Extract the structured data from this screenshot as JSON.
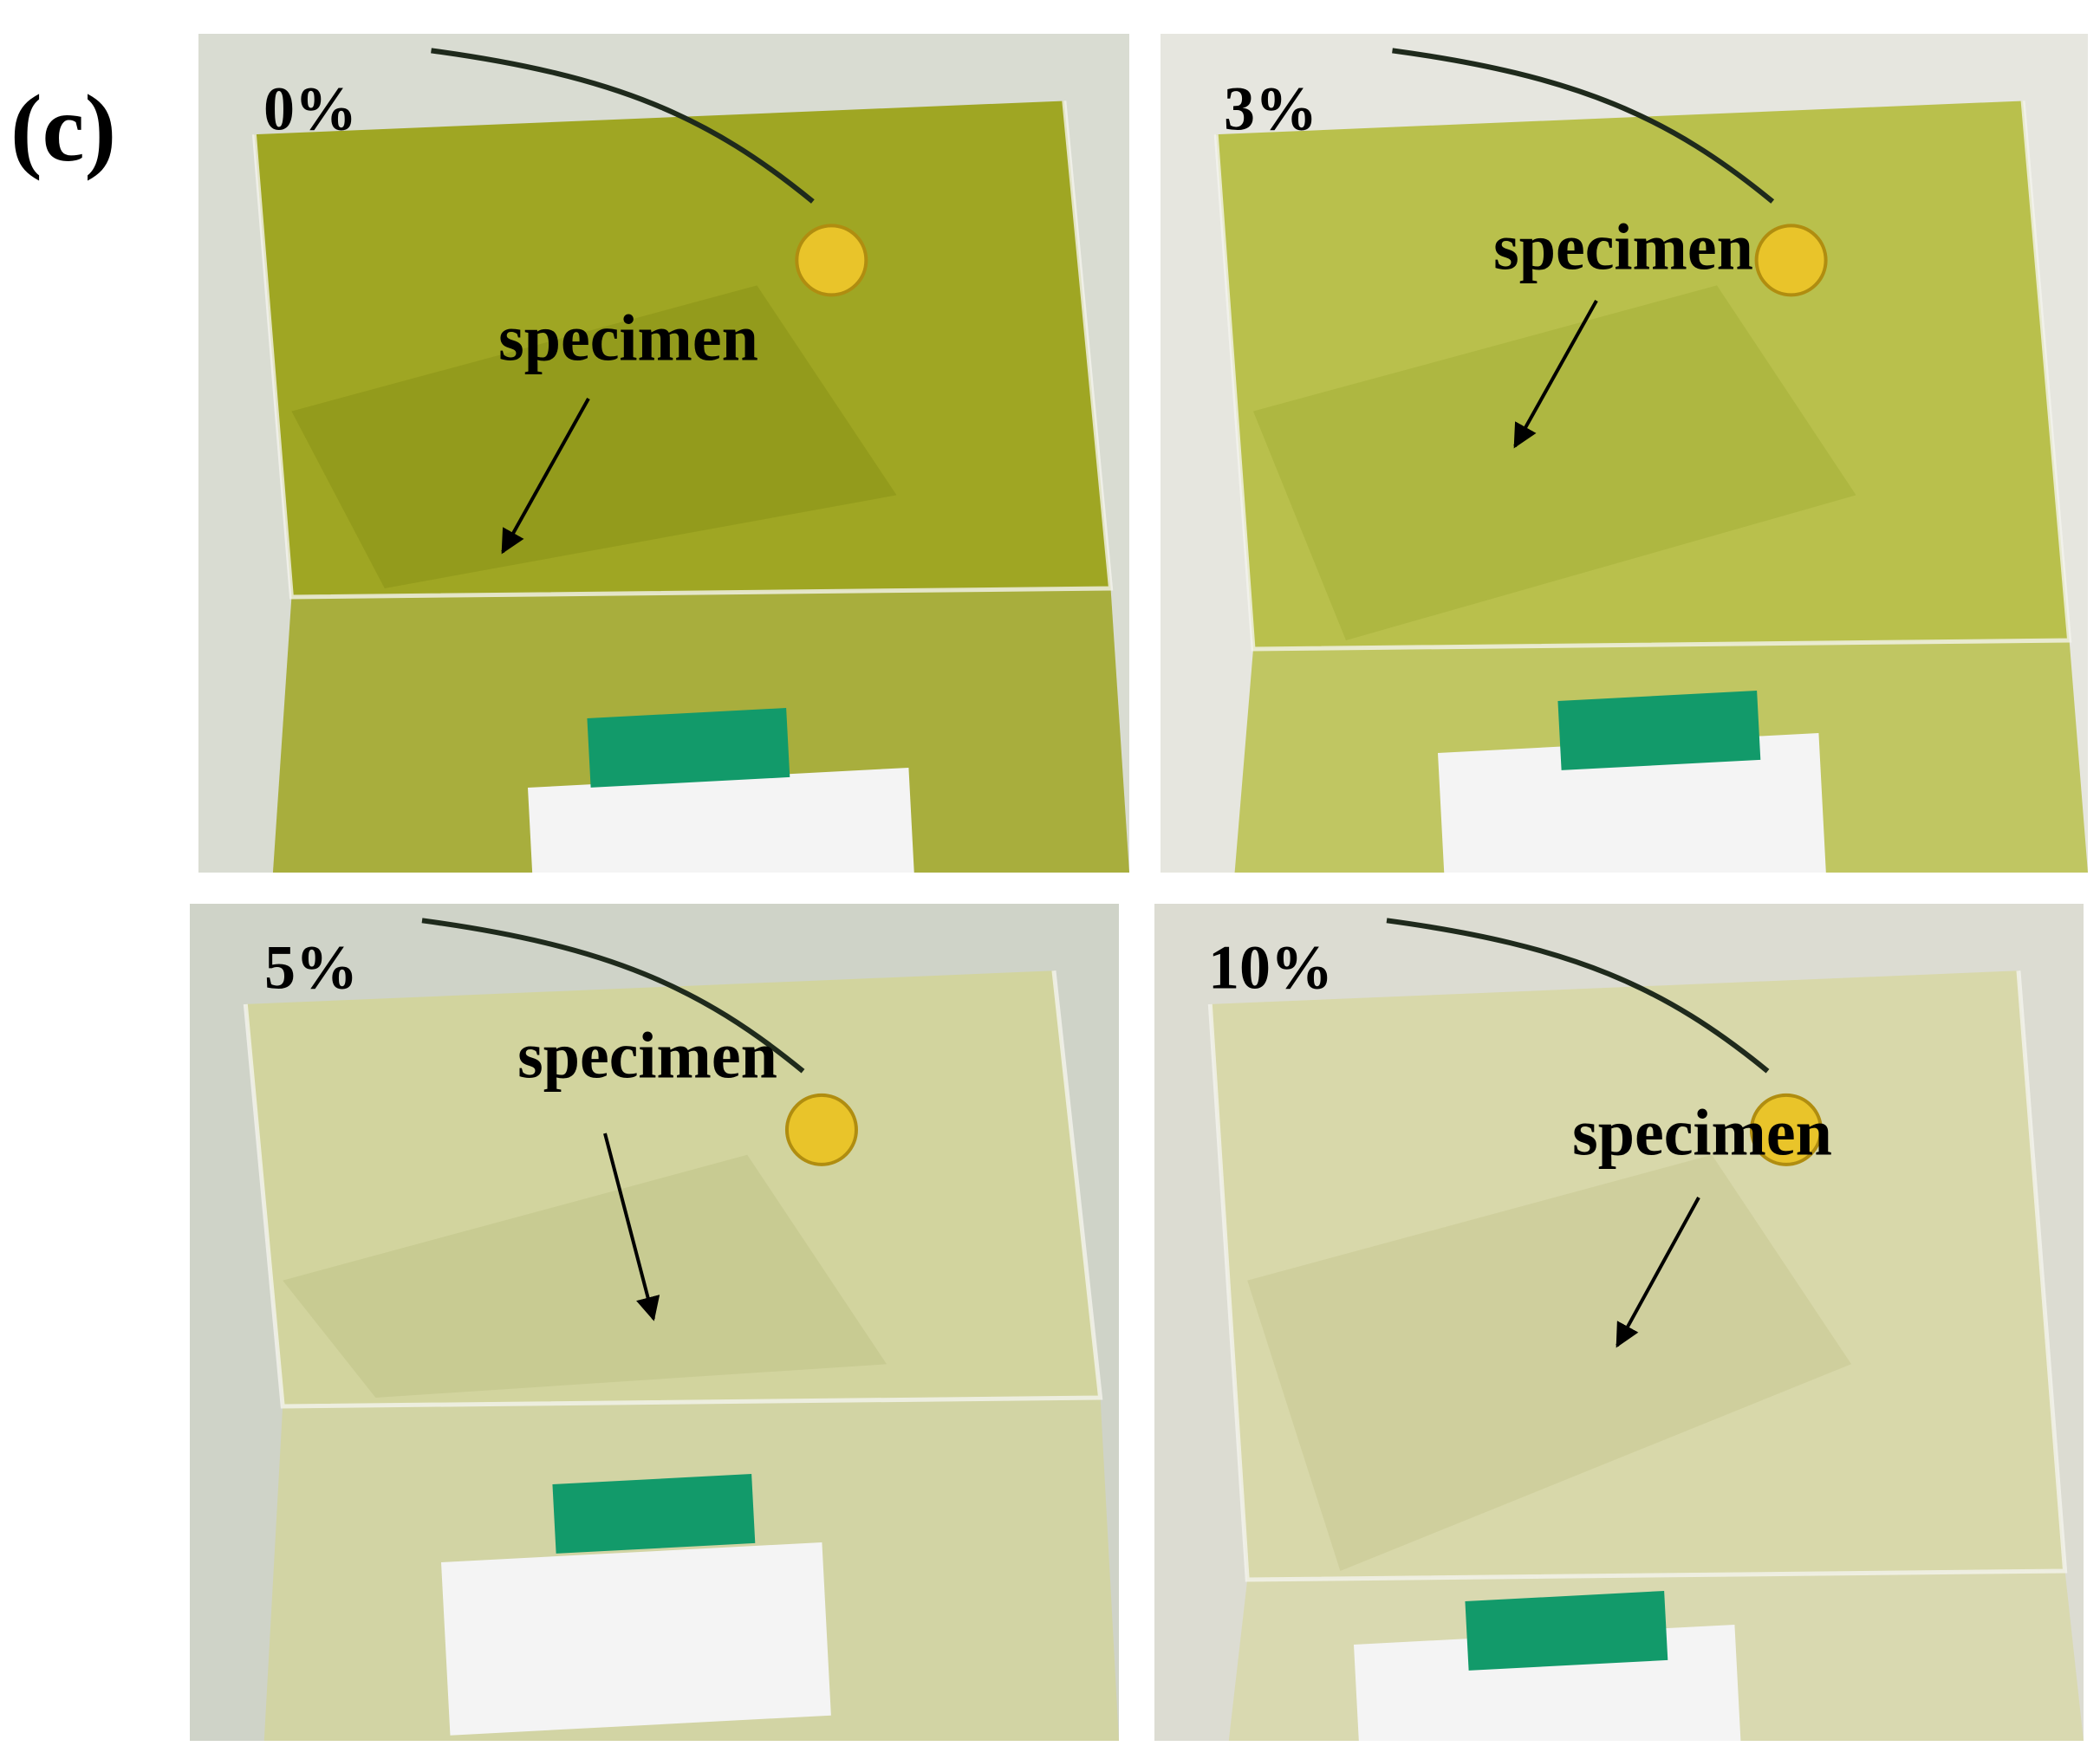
{
  "label": "(c)",
  "panels": [
    {
      "percent": "0%",
      "annotation": "specimen"
    },
    {
      "percent": "3%",
      "annotation": "specimen"
    },
    {
      "percent": "5%",
      "annotation": "specimen"
    },
    {
      "percent": "10%",
      "annotation": "specimen"
    }
  ]
}
